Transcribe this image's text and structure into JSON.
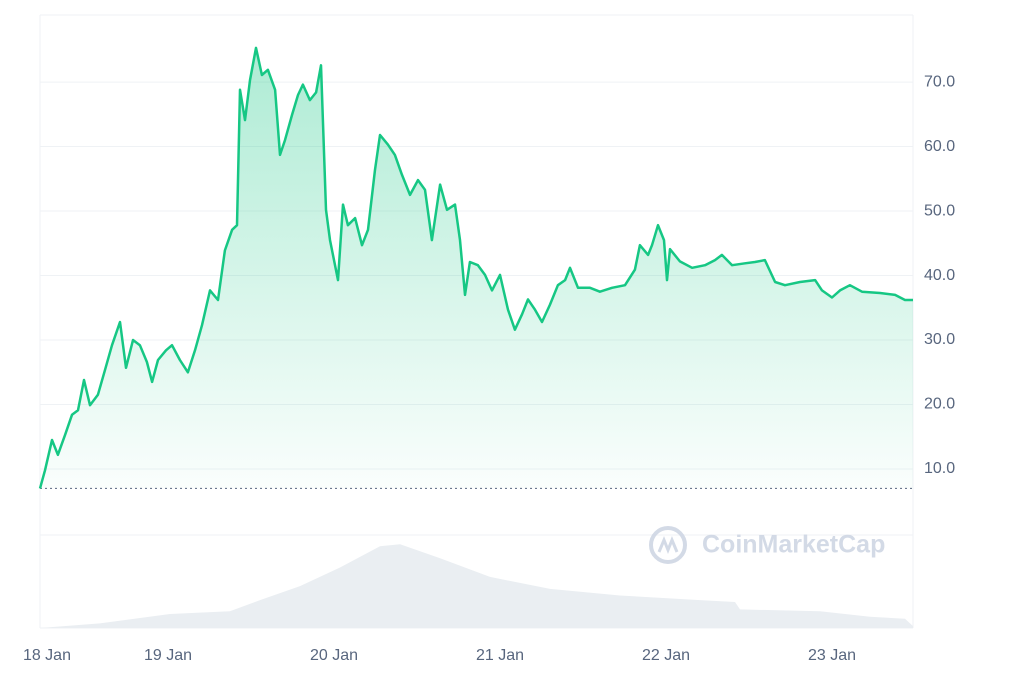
{
  "chart_data": {
    "type": "line",
    "color": "#16c784",
    "x": [
      0.229,
      0.259,
      0.301,
      0.337,
      0.38,
      0.422,
      0.458,
      0.494,
      0.53,
      0.578,
      0.62,
      0.663,
      0.711,
      0.747,
      0.789,
      0.831,
      0.873,
      0.904,
      0.94,
      0.988,
      1.024,
      1.072,
      1.12,
      1.163,
      1.205,
      1.253,
      1.301,
      1.343,
      1.386,
      1.416,
      1.434,
      1.464,
      1.494,
      1.53,
      1.566,
      1.602,
      1.645,
      1.675,
      1.705,
      1.747,
      1.783,
      1.813,
      1.855,
      1.892,
      1.922,
      1.952,
      1.976,
      2.024,
      2.054,
      2.084,
      2.127,
      2.169,
      2.205,
      2.247,
      2.277,
      2.325,
      2.367,
      2.41,
      2.458,
      2.506,
      2.548,
      2.59,
      2.639,
      2.681,
      2.729,
      2.759,
      2.789,
      2.819,
      2.867,
      2.91,
      2.952,
      3.0,
      3.048,
      3.09,
      3.133,
      3.169,
      3.211,
      3.253,
      3.301,
      3.349,
      3.392,
      3.422,
      3.47,
      3.542,
      3.602,
      3.675,
      3.753,
      3.813,
      3.843,
      3.892,
      3.916,
      3.952,
      3.988,
      4.006,
      4.024,
      4.084,
      4.157,
      4.235,
      4.295,
      4.337,
      4.398,
      4.476,
      4.536,
      4.596,
      4.657,
      4.717,
      4.807,
      4.898,
      4.94,
      5.0,
      5.048,
      5.108,
      5.181,
      5.289,
      5.38,
      5.44,
      5.488
    ],
    "values": [
      7.0,
      9.8,
      14.5,
      12.2,
      15.3,
      18.4,
      19.1,
      23.8,
      19.9,
      21.5,
      25.3,
      29.2,
      32.8,
      25.7,
      30.0,
      29.2,
      26.6,
      23.5,
      26.9,
      28.4,
      29.2,
      26.9,
      25.0,
      28.4,
      32.3,
      37.7,
      36.2,
      43.9,
      47.1,
      47.8,
      68.8,
      64.1,
      70.3,
      75.3,
      71.1,
      71.9,
      68.8,
      58.7,
      61.0,
      64.9,
      68.0,
      69.6,
      67.2,
      68.4,
      72.6,
      50.2,
      45.5,
      39.3,
      51.0,
      47.8,
      48.9,
      44.7,
      47.1,
      56.4,
      61.8,
      60.3,
      58.7,
      55.6,
      52.5,
      54.8,
      53.3,
      45.5,
      54.1,
      50.2,
      51.0,
      45.5,
      37.0,
      42.1,
      41.6,
      40.1,
      37.7,
      40.1,
      34.7,
      31.6,
      34.0,
      36.3,
      34.7,
      32.8,
      35.5,
      38.5,
      39.3,
      41.2,
      38.1,
      38.1,
      37.5,
      38.1,
      38.5,
      40.9,
      44.7,
      43.2,
      44.7,
      47.8,
      45.5,
      39.3,
      44.1,
      42.2,
      41.2,
      41.6,
      42.4,
      43.2,
      41.6,
      41.9,
      42.1,
      42.4,
      39.0,
      38.5,
      39.0,
      39.3,
      37.7,
      36.6,
      37.7,
      38.5,
      37.5,
      37.3,
      37.0,
      36.2,
      36.2
    ],
    "baseline": 7.0,
    "xlim": [
      0.229,
      5.488
    ],
    "ylim": [
      6.9,
      80.4
    ],
    "xticks": [
      {
        "value": 0.271,
        "label": "18 Jan"
      },
      {
        "value": 1,
        "label": "19 Jan"
      },
      {
        "value": 2,
        "label": "20 Jan"
      },
      {
        "value": 3,
        "label": "21 Jan"
      },
      {
        "value": 4,
        "label": "22 Jan"
      },
      {
        "value": 5,
        "label": "23 Jan"
      }
    ],
    "yticks": [
      {
        "value": 10,
        "label": "10.0"
      },
      {
        "value": 20,
        "label": "20.0"
      },
      {
        "value": 30,
        "label": "30.0"
      },
      {
        "value": 40,
        "label": "40.0"
      },
      {
        "value": 50,
        "label": "50.0"
      },
      {
        "value": 60,
        "label": "60.0"
      },
      {
        "value": 70,
        "label": "70.0"
      }
    ],
    "grid": true,
    "watermark": "CoinMarketCap",
    "volume": {
      "color": "#eaeef2",
      "ylim": [
        0,
        100
      ],
      "x": [
        0.229,
        0.59,
        1.012,
        1.373,
        1.554,
        1.795,
        2.036,
        2.277,
        2.398,
        2.639,
        2.94,
        3.301,
        3.723,
        4.205,
        4.416,
        4.446,
        4.928,
        5.229,
        5.44,
        5.488
      ],
      "values": [
        0,
        5,
        15,
        18,
        30,
        45,
        65,
        88,
        90,
        75,
        55,
        42,
        35,
        30,
        28,
        20,
        18,
        12,
        10,
        2
      ]
    }
  }
}
